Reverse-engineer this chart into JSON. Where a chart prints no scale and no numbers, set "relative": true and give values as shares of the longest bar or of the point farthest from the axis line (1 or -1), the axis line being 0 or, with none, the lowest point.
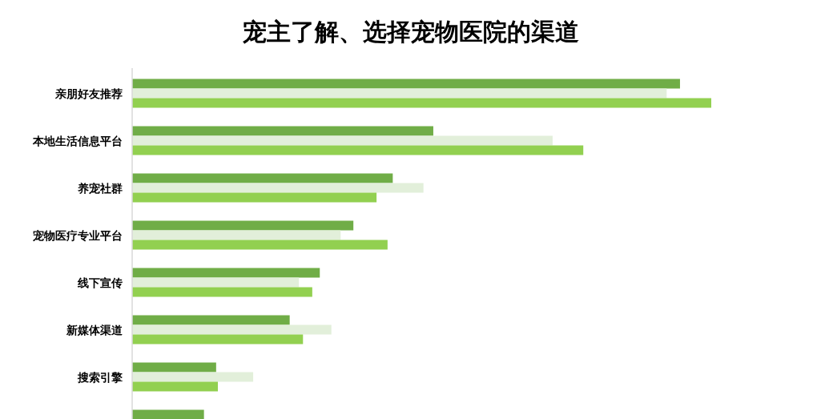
{
  "chart_data": {
    "type": "bar",
    "orientation": "horizontal",
    "relative": true,
    "title": "宠主了解、选择宠物医院的渠道",
    "categories": [
      "亲朋好友推荐",
      "本地生活信息平台",
      "养宠社群",
      "宠物医疗专业平台",
      "线下宣传",
      "新媒体渠道",
      "搜索引擎",
      null
    ],
    "series": [
      {
        "color": "#70ad47",
        "values": [
          0.946,
          0.52,
          0.45,
          0.382,
          0.324,
          0.272,
          0.145,
          0.124
        ]
      },
      {
        "color": "#e2efda",
        "values": [
          0.923,
          0.726,
          0.503,
          0.36,
          0.288,
          0.344,
          0.209,
          null
        ]
      },
      {
        "color": "#92d050",
        "values": [
          1,
          0.779,
          0.422,
          0.441,
          0.311,
          0.295,
          0.148,
          null
        ]
      }
    ]
  }
}
